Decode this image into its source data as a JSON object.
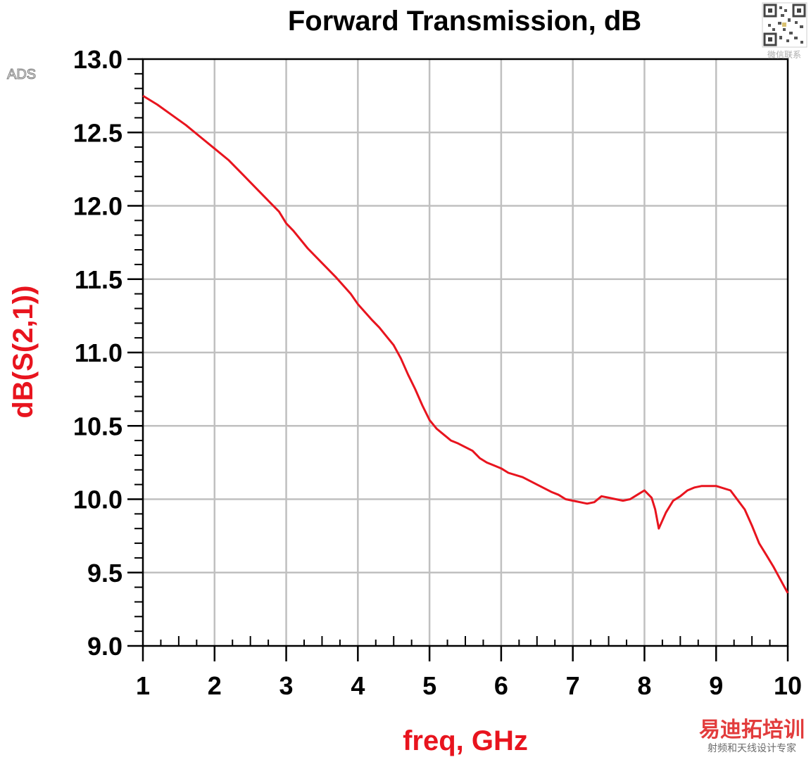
{
  "colors": {
    "series": "#e8141e",
    "grid": "#c0c0c0",
    "axis": "#000000",
    "label": "#e8141e"
  },
  "app_badge": "ADS",
  "watermark": {
    "brand": "易迪拓培训",
    "tagline": "射频和天线设计专家",
    "qr_caption": "微信联系"
  },
  "chart_data": {
    "type": "line",
    "title": "Forward Transmission, dB",
    "xlabel": "freq, GHz",
    "ylabel": "dB(S(2,1))",
    "xlim": [
      1,
      10
    ],
    "ylim": [
      9.0,
      13.0
    ],
    "x_ticks": [
      "1",
      "2",
      "3",
      "4",
      "5",
      "6",
      "7",
      "8",
      "9",
      "10"
    ],
    "y_ticks": [
      "9.0",
      "9.5",
      "10.0",
      "10.5",
      "11.0",
      "11.5",
      "12.0",
      "12.5",
      "13.0"
    ],
    "grid": true,
    "series": [
      {
        "color": "#e8141e",
        "x": [
          1.0,
          1.2,
          1.4,
          1.6,
          1.8,
          2.0,
          2.2,
          2.4,
          2.6,
          2.8,
          2.9,
          3.0,
          3.1,
          3.3,
          3.5,
          3.7,
          3.9,
          4.0,
          4.2,
          4.3,
          4.4,
          4.5,
          4.6,
          4.7,
          4.8,
          4.9,
          5.0,
          5.1,
          5.2,
          5.3,
          5.4,
          5.6,
          5.7,
          5.8,
          5.9,
          6.0,
          6.1,
          6.3,
          6.5,
          6.7,
          6.8,
          6.9,
          7.0,
          7.1,
          7.2,
          7.3,
          7.4,
          7.5,
          7.6,
          7.7,
          7.8,
          7.9,
          8.0,
          8.1,
          8.15,
          8.2,
          8.3,
          8.4,
          8.5,
          8.6,
          8.7,
          8.8,
          9.0,
          9.2,
          9.4,
          9.5,
          9.6,
          9.7,
          9.8,
          9.9,
          10.0
        ],
        "y": [
          12.75,
          12.69,
          12.62,
          12.55,
          12.47,
          12.39,
          12.31,
          12.21,
          12.11,
          12.01,
          11.96,
          11.88,
          11.83,
          11.71,
          11.61,
          11.51,
          11.4,
          11.33,
          11.22,
          11.17,
          11.11,
          11.05,
          10.96,
          10.85,
          10.75,
          10.64,
          10.54,
          10.48,
          10.44,
          10.4,
          10.38,
          10.33,
          10.28,
          10.25,
          10.23,
          10.21,
          10.18,
          10.15,
          10.1,
          10.05,
          10.03,
          10.0,
          9.99,
          9.98,
          9.97,
          9.98,
          10.02,
          10.01,
          10.0,
          9.99,
          10.0,
          10.03,
          10.06,
          10.01,
          9.93,
          9.8,
          9.91,
          9.99,
          10.02,
          10.06,
          10.08,
          10.09,
          10.09,
          10.06,
          9.93,
          9.82,
          9.7,
          9.62,
          9.54,
          9.45,
          9.36
        ]
      }
    ]
  }
}
